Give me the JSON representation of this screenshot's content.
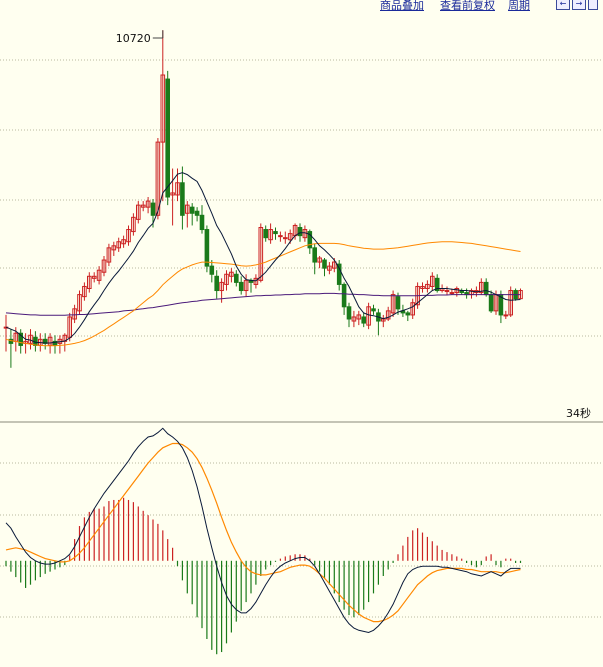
{
  "toolbar": {
    "overlay_label": "商品叠加",
    "rights_label": "查看前复权",
    "period_label": "周期",
    "btn_prev": "←",
    "btn_next": "→"
  },
  "chart_data": [
    {
      "type": "candlestick",
      "peak_label": "10720",
      "price_range": [
        9860,
        10760
      ],
      "colors": {
        "up": "#cc2222",
        "down": "#1a7a1a",
        "ma_fast": "#0a1a3a",
        "ma_mid": "#ff8800",
        "ma_slow": "#4a1a7a"
      },
      "candles": [
        [
          9990,
          9990,
          9930,
          10020
        ],
        [
          9960,
          9950,
          9890,
          9985
        ],
        [
          9955,
          9975,
          9930,
          9990
        ],
        [
          9975,
          9945,
          9925,
          9985
        ],
        [
          9950,
          9955,
          9925,
          9975
        ],
        [
          9950,
          9970,
          9935,
          9985
        ],
        [
          9965,
          9945,
          9930,
          9980
        ],
        [
          9945,
          9960,
          9930,
          9975
        ],
        [
          9960,
          9950,
          9935,
          9975
        ],
        [
          9945,
          9965,
          9925,
          9975
        ],
        [
          9955,
          9945,
          9925,
          9970
        ],
        [
          9950,
          9960,
          9925,
          9970
        ],
        [
          9955,
          9970,
          9930,
          9975
        ],
        [
          9965,
          10015,
          9955,
          10025
        ],
        [
          10010,
          10035,
          10000,
          10045
        ],
        [
          10030,
          10070,
          10020,
          10080
        ],
        [
          10065,
          10090,
          10055,
          10100
        ],
        [
          10085,
          10115,
          10075,
          10125
        ],
        [
          10110,
          10115,
          10100,
          10125
        ],
        [
          10105,
          10130,
          10095,
          10140
        ],
        [
          10125,
          10155,
          10115,
          10165
        ],
        [
          10150,
          10185,
          10140,
          10195
        ],
        [
          10180,
          10190,
          10165,
          10200
        ],
        [
          10185,
          10200,
          10175,
          10210
        ],
        [
          10195,
          10205,
          10185,
          10215
        ],
        [
          10200,
          10230,
          10190,
          10240
        ],
        [
          10225,
          10260,
          10215,
          10270
        ],
        [
          10255,
          10290,
          10245,
          10300
        ],
        [
          10285,
          10290,
          10275,
          10300
        ],
        [
          10285,
          10300,
          10270,
          10310
        ],
        [
          10295,
          10265,
          10235,
          10305
        ],
        [
          10265,
          10445,
          10255,
          10455
        ],
        [
          10445,
          10610,
          10300,
          10720
        ],
        [
          10600,
          10310,
          10290,
          10620
        ],
        [
          10315,
          10320,
          10240,
          10380
        ],
        [
          10315,
          10345,
          10300,
          10380
        ],
        [
          10345,
          10265,
          10230,
          10385
        ],
        [
          10270,
          10290,
          10235,
          10300
        ],
        [
          10285,
          10270,
          10240,
          10295
        ],
        [
          10275,
          10265,
          10250,
          10285
        ],
        [
          10265,
          10230,
          10220,
          10290
        ],
        [
          10230,
          10140,
          10125,
          10240
        ],
        [
          10140,
          10120,
          10100,
          10155
        ],
        [
          10115,
          10080,
          10060,
          10130
        ],
        [
          10080,
          10100,
          10050,
          10110
        ],
        [
          10095,
          10120,
          10080,
          10130
        ],
        [
          10115,
          10125,
          10100,
          10135
        ],
        [
          10120,
          10100,
          10090,
          10130
        ],
        [
          10100,
          10080,
          10070,
          10115
        ],
        [
          10080,
          10105,
          10065,
          10120
        ],
        [
          10105,
          10100,
          10075,
          10110
        ],
        [
          10095,
          10110,
          10085,
          10120
        ],
        [
          10105,
          10235,
          10100,
          10245
        ],
        [
          10230,
          10210,
          10200,
          10240
        ],
        [
          10205,
          10230,
          10195,
          10245
        ],
        [
          10225,
          10220,
          10205,
          10235
        ],
        [
          10215,
          10215,
          10200,
          10225
        ],
        [
          10210,
          10210,
          10195,
          10225
        ],
        [
          10205,
          10220,
          10195,
          10230
        ],
        [
          10215,
          10240,
          10205,
          10245
        ],
        [
          10235,
          10215,
          10200,
          10245
        ],
        [
          10210,
          10230,
          10200,
          10240
        ],
        [
          10225,
          10185,
          10170,
          10230
        ],
        [
          10185,
          10150,
          10120,
          10195
        ],
        [
          10150,
          10160,
          10135,
          10165
        ],
        [
          10155,
          10135,
          10115,
          10160
        ],
        [
          10130,
          10140,
          10120,
          10150
        ],
        [
          10135,
          10150,
          10125,
          10160
        ],
        [
          10145,
          10095,
          10080,
          10155
        ],
        [
          10095,
          10040,
          10020,
          10100
        ],
        [
          10040,
          10010,
          9990,
          10050
        ],
        [
          10005,
          10015,
          9990,
          10030
        ],
        [
          10010,
          10020,
          9995,
          10030
        ],
        [
          10015,
          10000,
          9990,
          10025
        ],
        [
          9995,
          10040,
          9985,
          10050
        ],
        [
          10035,
          10030,
          10020,
          10045
        ],
        [
          10025,
          10005,
          9970,
          10035
        ],
        [
          10005,
          10010,
          9990,
          10020
        ],
        [
          10010,
          10030,
          10005,
          10040
        ],
        [
          10025,
          10070,
          10015,
          10080
        ],
        [
          10065,
          10035,
          10020,
          10075
        ],
        [
          10030,
          10025,
          10015,
          10045
        ],
        [
          10025,
          10020,
          10005,
          10030
        ],
        [
          10020,
          10050,
          10010,
          10060
        ],
        [
          10045,
          10090,
          10035,
          10100
        ],
        [
          10085,
          10090,
          10075,
          10100
        ],
        [
          10085,
          10095,
          10075,
          10105
        ],
        [
          10090,
          10115,
          10080,
          10125
        ],
        [
          10110,
          10080,
          10075,
          10120
        ],
        [
          10080,
          10085,
          10075,
          10095
        ],
        [
          10080,
          10080,
          10070,
          10090
        ],
        [
          10075,
          10075,
          10070,
          10085
        ],
        [
          10075,
          10085,
          10065,
          10090
        ],
        [
          10080,
          10075,
          10070,
          10085
        ],
        [
          10075,
          10070,
          10060,
          10085
        ],
        [
          10070,
          10080,
          10060,
          10085
        ],
        [
          10075,
          10080,
          10065,
          10090
        ],
        [
          10075,
          10100,
          10070,
          10110
        ],
        [
          10100,
          10070,
          10065,
          10110
        ],
        [
          10070,
          10030,
          10025,
          10080
        ],
        [
          10030,
          10070,
          10020,
          10080
        ],
        [
          10070,
          10020,
          10000,
          10080
        ],
        [
          10020,
          10020,
          10010,
          10030
        ],
        [
          10020,
          10080,
          10015,
          10090
        ],
        [
          10080,
          10060,
          10055,
          10085
        ],
        [
          10060,
          10080,
          10060,
          10085
        ]
      ],
      "ma_fast": [
        9990,
        9985,
        9980,
        9970,
        9960,
        9958,
        9953,
        9952,
        9951,
        9951,
        9953,
        9954,
        9956,
        9963,
        9974,
        9990,
        10008,
        10028,
        10045,
        10061,
        10080,
        10098,
        10114,
        10128,
        10144,
        10160,
        10177,
        10198,
        10215,
        10233,
        10245,
        10275,
        10320,
        10335,
        10350,
        10366,
        10370,
        10365,
        10356,
        10348,
        10326,
        10298,
        10270,
        10240,
        10220,
        10195,
        10170,
        10140,
        10120,
        10107,
        10105,
        10104,
        10114,
        10125,
        10140,
        10155,
        10168,
        10183,
        10200,
        10215,
        10222,
        10222,
        10218,
        10205,
        10190,
        10180,
        10168,
        10155,
        10135,
        10110,
        10090,
        10065,
        10040,
        10025,
        10020,
        10018,
        10015,
        10011,
        10014,
        10020,
        10027,
        10031,
        10035,
        10040,
        10050,
        10060,
        10070,
        10080,
        10085,
        10085,
        10085,
        10083,
        10082,
        10080,
        10080,
        10078,
        10077,
        10078,
        10080,
        10076,
        10070,
        10064,
        10058,
        10056,
        10057,
        10058
      ],
      "ma_mid": [
        9960,
        9957,
        9955,
        9952,
        9950,
        9948,
        9946,
        9945,
        9944,
        9944,
        9944,
        9945,
        9946,
        9948,
        9950,
        9953,
        9957,
        9962,
        9968,
        9975,
        9982,
        9990,
        9998,
        10006,
        10014,
        10022,
        10030,
        10040,
        10050,
        10060,
        10068,
        10080,
        10094,
        10105,
        10115,
        10125,
        10133,
        10138,
        10143,
        10147,
        10150,
        10150,
        10149,
        10148,
        10147,
        10146,
        10145,
        10143,
        10141,
        10140,
        10141,
        10143,
        10146,
        10150,
        10155,
        10160,
        10165,
        10170,
        10175,
        10180,
        10185,
        10190,
        10193,
        10195,
        10196,
        10196,
        10196,
        10196,
        10195,
        10193,
        10190,
        10188,
        10186,
        10184,
        10183,
        10182,
        10182,
        10182,
        10183,
        10184,
        10185,
        10187,
        10189,
        10191,
        10193,
        10195,
        10197,
        10198,
        10199,
        10200,
        10200,
        10200,
        10199,
        10198,
        10197,
        10196,
        10194,
        10192,
        10190,
        10188,
        10186,
        10184,
        10182,
        10180,
        10178,
        10176
      ],
      "ma_slow": [
        10025,
        10024,
        10023,
        10022,
        10021,
        10020,
        10020,
        10019,
        10019,
        10019,
        10019,
        10019,
        10019,
        10020,
        10020,
        10021,
        10021,
        10022,
        10023,
        10024,
        10025,
        10026,
        10027,
        10028,
        10030,
        10031,
        10032,
        10034,
        10035,
        10037,
        10038,
        10040,
        10042,
        10044,
        10046,
        10048,
        10050,
        10051,
        10053,
        10054,
        10056,
        10057,
        10058,
        10059,
        10060,
        10061,
        10062,
        10063,
        10064,
        10065,
        10066,
        10067,
        10067,
        10068,
        10068,
        10069,
        10069,
        10070,
        10070,
        10071,
        10071,
        10072,
        10072,
        10072,
        10072,
        10073,
        10073,
        10073,
        10072,
        10072,
        10071,
        10071,
        10070,
        10070,
        10069,
        10068,
        10068,
        10067,
        10067,
        10067,
        10067,
        10067,
        10067,
        10067,
        10067,
        10068,
        10068,
        10068,
        10069,
        10069,
        10069,
        10070,
        10070,
        10070,
        10070,
        10070,
        10070,
        10070,
        10070,
        10070,
        10070,
        10070,
        10070,
        10070,
        10070,
        10070
      ]
    },
    {
      "type": "macd",
      "value_range": [
        -0.95,
        1.25
      ],
      "time_label": "34秒",
      "colors": {
        "pos": "#cc2222",
        "neg": "#1a7a1a",
        "dif": "#0a1a3a",
        "dea": "#ff8800"
      },
      "dif": [
        0.35,
        0.3,
        0.22,
        0.15,
        0.08,
        0.03,
        0.0,
        -0.02,
        -0.03,
        -0.03,
        -0.02,
        0.0,
        0.02,
        0.06,
        0.13,
        0.22,
        0.31,
        0.4,
        0.48,
        0.55,
        0.62,
        0.68,
        0.74,
        0.8,
        0.86,
        0.92,
        0.99,
        1.05,
        1.1,
        1.14,
        1.15,
        1.18,
        1.22,
        1.17,
        1.14,
        1.1,
        1.04,
        0.95,
        0.83,
        0.68,
        0.5,
        0.3,
        0.12,
        -0.05,
        -0.2,
        -0.32,
        -0.4,
        -0.45,
        -0.48,
        -0.48,
        -0.44,
        -0.38,
        -0.3,
        -0.22,
        -0.15,
        -0.09,
        -0.05,
        -0.02,
        0.0,
        0.02,
        0.03,
        0.03,
        0.0,
        -0.05,
        -0.12,
        -0.2,
        -0.28,
        -0.36,
        -0.44,
        -0.52,
        -0.58,
        -0.62,
        -0.64,
        -0.65,
        -0.66,
        -0.64,
        -0.6,
        -0.55,
        -0.48,
        -0.4,
        -0.3,
        -0.2,
        -0.12,
        -0.08,
        -0.06,
        -0.05,
        -0.05,
        -0.05,
        -0.05,
        -0.06,
        -0.06,
        -0.07,
        -0.08,
        -0.09,
        -0.1,
        -0.12,
        -0.13,
        -0.14,
        -0.12,
        -0.1,
        -0.12,
        -0.14,
        -0.1,
        -0.07,
        -0.07,
        -0.07
      ],
      "dea": [
        0.1,
        0.11,
        0.12,
        0.11,
        0.1,
        0.08,
        0.06,
        0.04,
        0.02,
        0.01,
        0.0,
        -0.01,
        -0.01,
        0.0,
        0.03,
        0.07,
        0.12,
        0.18,
        0.24,
        0.3,
        0.36,
        0.42,
        0.48,
        0.54,
        0.6,
        0.66,
        0.72,
        0.78,
        0.84,
        0.9,
        0.95,
        1.0,
        1.04,
        1.06,
        1.08,
        1.08,
        1.07,
        1.04,
        1.0,
        0.94,
        0.86,
        0.76,
        0.65,
        0.53,
        0.4,
        0.28,
        0.17,
        0.08,
        0.0,
        -0.06,
        -0.1,
        -0.12,
        -0.13,
        -0.13,
        -0.12,
        -0.11,
        -0.1,
        -0.08,
        -0.06,
        -0.05,
        -0.04,
        -0.04,
        -0.05,
        -0.08,
        -0.12,
        -0.16,
        -0.21,
        -0.26,
        -0.31,
        -0.36,
        -0.41,
        -0.45,
        -0.49,
        -0.52,
        -0.54,
        -0.56,
        -0.56,
        -0.55,
        -0.53,
        -0.5,
        -0.46,
        -0.4,
        -0.34,
        -0.28,
        -0.22,
        -0.18,
        -0.14,
        -0.11,
        -0.09,
        -0.08,
        -0.07,
        -0.07,
        -0.07,
        -0.07,
        -0.08,
        -0.08,
        -0.09,
        -0.1,
        -0.1,
        -0.1,
        -0.1,
        -0.11,
        -0.11,
        -0.1,
        -0.09,
        -0.08
      ],
      "hist": [
        -0.05,
        -0.1,
        -0.15,
        -0.2,
        -0.25,
        -0.22,
        -0.18,
        -0.15,
        -0.12,
        -0.1,
        -0.08,
        -0.06,
        -0.04,
        0.05,
        0.2,
        0.32,
        0.4,
        0.45,
        0.48,
        0.48,
        0.5,
        0.55,
        0.56,
        0.56,
        0.58,
        0.56,
        0.54,
        0.5,
        0.46,
        0.42,
        0.38,
        0.34,
        0.28,
        0.2,
        0.12,
        -0.05,
        -0.18,
        -0.3,
        -0.4,
        -0.52,
        -0.62,
        -0.72,
        -0.82,
        -0.86,
        -0.84,
        -0.76,
        -0.66,
        -0.56,
        -0.46,
        -0.38,
        -0.3,
        -0.22,
        -0.14,
        -0.08,
        -0.04,
        -0.01,
        0.02,
        0.04,
        0.05,
        0.06,
        0.06,
        0.05,
        0.02,
        -0.04,
        -0.1,
        -0.16,
        -0.22,
        -0.3,
        -0.38,
        -0.45,
        -0.5,
        -0.52,
        -0.5,
        -0.45,
        -0.38,
        -0.3,
        -0.22,
        -0.14,
        -0.08,
        -0.02,
        0.06,
        0.14,
        0.22,
        0.28,
        0.3,
        0.26,
        0.22,
        0.18,
        0.14,
        0.1,
        0.08,
        0.06,
        0.04,
        0.02,
        -0.02,
        -0.04,
        -0.06,
        -0.04,
        0.04,
        0.06,
        -0.04,
        -0.06,
        0.02,
        0.02,
        -0.02,
        -0.02
      ]
    }
  ]
}
